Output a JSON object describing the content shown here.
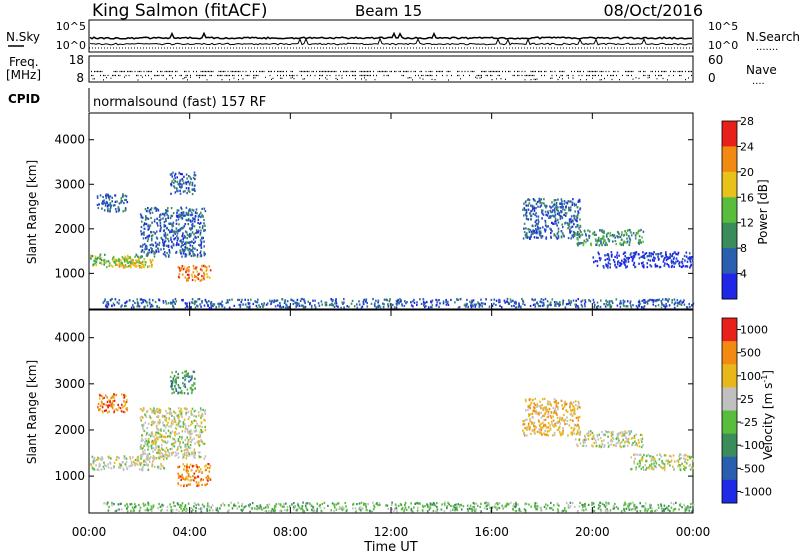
{
  "header": {
    "station": "King Salmon (fitACF)",
    "beam": "Beam 15",
    "date": "08/Oct/2016"
  },
  "noise_panel": {
    "left_label": "N.Sky",
    "right_label": "N.Search",
    "tick_top": "10^5",
    "tick_bottom": "10^0"
  },
  "freq_panel": {
    "left_label_line1": "Freq.",
    "left_label_line2": "[MHz]",
    "right_label": "Nave",
    "left_tick_top": "18",
    "left_tick_bottom": "8",
    "right_tick_top": "60",
    "right_tick_bottom": "0"
  },
  "cpid_panel": {
    "left_label": "CPID",
    "program": "normalsound (fast) 157 RF"
  },
  "chart_data": [
    {
      "type": "heatmap",
      "title": "",
      "ylabel": "Slant Range [km]",
      "xlabel": "",
      "ylim": [
        200,
        4600
      ],
      "yticks": [
        "1000",
        "2000",
        "3000",
        "4000"
      ],
      "colorbar": {
        "label": "Power [dB]",
        "tick_labels": [
          "4",
          "8",
          "12",
          "16",
          "20",
          "24",
          "28"
        ],
        "colors": [
          "#1f26e6",
          "#2a5fb0",
          "#3a8c5a",
          "#58bd3c",
          "#e8c21a",
          "#f28a12",
          "#e8201a"
        ]
      },
      "regions": [
        {
          "t0": 0.0,
          "t1": 2.2,
          "r0": 1150,
          "r1": 1450,
          "level": 3
        },
        {
          "t0": 1.0,
          "t1": 2.5,
          "r0": 1150,
          "r1": 1350,
          "level": 4
        },
        {
          "t0": 3.5,
          "t1": 4.8,
          "r0": 850,
          "r1": 1200,
          "level": 5
        },
        {
          "t0": 2.0,
          "t1": 4.6,
          "r0": 1400,
          "r1": 2500,
          "level": 1
        },
        {
          "t0": 0.3,
          "t1": 1.5,
          "r0": 2400,
          "r1": 2800,
          "level": 1
        },
        {
          "t0": 3.2,
          "t1": 4.2,
          "r0": 2800,
          "r1": 3300,
          "level": 1
        },
        {
          "t0": 0.5,
          "t1": 24.0,
          "r0": 250,
          "r1": 450,
          "level": 1
        },
        {
          "t0": 17.2,
          "t1": 19.5,
          "r0": 1800,
          "r1": 2700,
          "level": 1
        },
        {
          "t0": 19.3,
          "t1": 22.0,
          "r0": 1650,
          "r1": 2000,
          "level": 2
        },
        {
          "t0": 20.0,
          "t1": 24.0,
          "r0": 1150,
          "r1": 1500,
          "level": 0
        }
      ]
    },
    {
      "type": "heatmap",
      "title": "",
      "ylabel": "Slant Range [km]",
      "xlabel": "Time UT",
      "ylim": [
        200,
        4600
      ],
      "yticks": [
        "1000",
        "2000",
        "3000",
        "4000"
      ],
      "xticks": [
        "00:00",
        "04:00",
        "08:00",
        "12:00",
        "16:00",
        "20:00",
        "00:00"
      ],
      "colorbar": {
        "label": "Velocity [m s^-1]",
        "tick_labels": [
          "1000",
          "500",
          "100",
          "25",
          "-25",
          "-100",
          "-500",
          "-1000"
        ],
        "colors": [
          "#1f2ae6",
          "#2a5fb0",
          "#3a8c5a",
          "#58bd3c",
          "#c0c0c0",
          "#e8b81a",
          "#f28a12",
          "#e8201a"
        ]
      },
      "regions": [
        {
          "t0": 0.0,
          "t1": 3.0,
          "r0": 1150,
          "r1": 1450,
          "level": 4
        },
        {
          "t0": 3.5,
          "t1": 4.8,
          "r0": 800,
          "r1": 1300,
          "level": 6
        },
        {
          "t0": 2.0,
          "t1": 4.6,
          "r0": 1400,
          "r1": 2500,
          "level": 4
        },
        {
          "t0": 0.3,
          "t1": 1.5,
          "r0": 2400,
          "r1": 2800,
          "level": 6
        },
        {
          "t0": 3.2,
          "t1": 4.2,
          "r0": 2800,
          "r1": 3300,
          "level": 2
        },
        {
          "t0": 0.5,
          "t1": 24.0,
          "r0": 250,
          "r1": 450,
          "level": 3
        },
        {
          "t0": 17.2,
          "t1": 19.5,
          "r0": 1900,
          "r1": 2700,
          "level": 5
        },
        {
          "t0": 19.3,
          "t1": 22.0,
          "r0": 1650,
          "r1": 2000,
          "level": 4
        },
        {
          "t0": 21.5,
          "t1": 24.0,
          "r0": 1150,
          "r1": 1500,
          "level": 4
        }
      ]
    }
  ]
}
